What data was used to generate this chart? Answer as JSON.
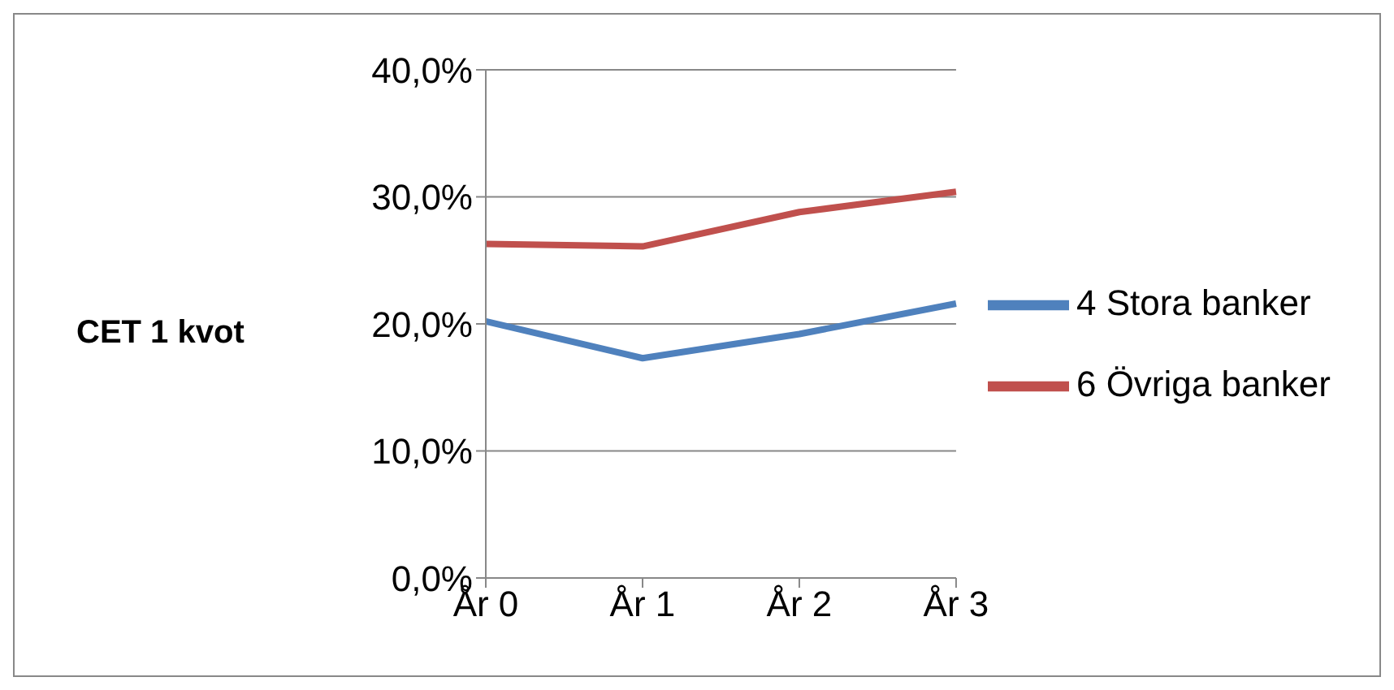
{
  "chart_data": {
    "type": "line",
    "ylabel": "CET 1 kvot",
    "categories": [
      "År 0",
      "År 1",
      "År 2",
      "År 3"
    ],
    "series": [
      {
        "name": "4 Stora banker",
        "color": "#4f81bd",
        "values": [
          20.2,
          17.3,
          19.2,
          21.6
        ]
      },
      {
        "name": "6 Övriga banker",
        "color": "#c0504d",
        "values": [
          26.3,
          26.1,
          28.8,
          30.4
        ]
      }
    ],
    "ylim": [
      0,
      40
    ],
    "yticks": [
      {
        "value": 0,
        "label": "0,0%"
      },
      {
        "value": 10,
        "label": "10,0%"
      },
      {
        "value": 20,
        "label": "20,0%"
      },
      {
        "value": 30,
        "label": "30,0%"
      },
      {
        "value": 40,
        "label": "40,0%"
      }
    ],
    "grid": "y",
    "legend": "right",
    "marker": "none",
    "line_style": "solid"
  }
}
